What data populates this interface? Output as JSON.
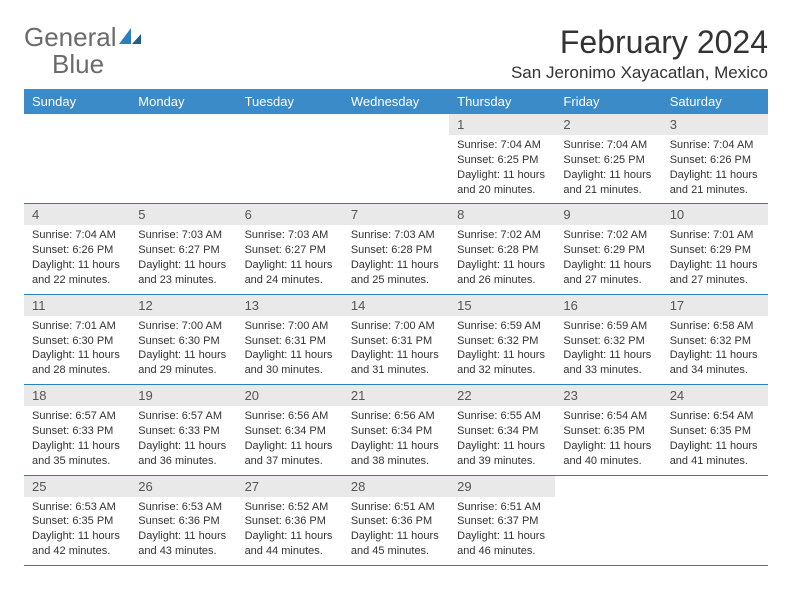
{
  "brand": {
    "name_part1": "General",
    "name_part2": "Blue"
  },
  "title": "February 2024",
  "location": "San Jeronimo Xayacatlan, Mexico",
  "colors": {
    "header_bg": "#3b8bc8",
    "header_text": "#ffffff",
    "daybar_bg": "#e9e9e9",
    "row_border": "#2a7fbf",
    "logo_gray": "#6b6b6b",
    "logo_blue": "#2a7fbf",
    "text": "#333333"
  },
  "day_headers": [
    "Sunday",
    "Monday",
    "Tuesday",
    "Wednesday",
    "Thursday",
    "Friday",
    "Saturday"
  ],
  "weeks": [
    [
      null,
      null,
      null,
      null,
      {
        "n": 1,
        "sunrise": "7:04 AM",
        "sunset": "6:25 PM",
        "daylight": "11 hours and 20 minutes."
      },
      {
        "n": 2,
        "sunrise": "7:04 AM",
        "sunset": "6:25 PM",
        "daylight": "11 hours and 21 minutes."
      },
      {
        "n": 3,
        "sunrise": "7:04 AM",
        "sunset": "6:26 PM",
        "daylight": "11 hours and 21 minutes."
      }
    ],
    [
      {
        "n": 4,
        "sunrise": "7:04 AM",
        "sunset": "6:26 PM",
        "daylight": "11 hours and 22 minutes."
      },
      {
        "n": 5,
        "sunrise": "7:03 AM",
        "sunset": "6:27 PM",
        "daylight": "11 hours and 23 minutes."
      },
      {
        "n": 6,
        "sunrise": "7:03 AM",
        "sunset": "6:27 PM",
        "daylight": "11 hours and 24 minutes."
      },
      {
        "n": 7,
        "sunrise": "7:03 AM",
        "sunset": "6:28 PM",
        "daylight": "11 hours and 25 minutes."
      },
      {
        "n": 8,
        "sunrise": "7:02 AM",
        "sunset": "6:28 PM",
        "daylight": "11 hours and 26 minutes."
      },
      {
        "n": 9,
        "sunrise": "7:02 AM",
        "sunset": "6:29 PM",
        "daylight": "11 hours and 27 minutes."
      },
      {
        "n": 10,
        "sunrise": "7:01 AM",
        "sunset": "6:29 PM",
        "daylight": "11 hours and 27 minutes."
      }
    ],
    [
      {
        "n": 11,
        "sunrise": "7:01 AM",
        "sunset": "6:30 PM",
        "daylight": "11 hours and 28 minutes."
      },
      {
        "n": 12,
        "sunrise": "7:00 AM",
        "sunset": "6:30 PM",
        "daylight": "11 hours and 29 minutes."
      },
      {
        "n": 13,
        "sunrise": "7:00 AM",
        "sunset": "6:31 PM",
        "daylight": "11 hours and 30 minutes."
      },
      {
        "n": 14,
        "sunrise": "7:00 AM",
        "sunset": "6:31 PM",
        "daylight": "11 hours and 31 minutes."
      },
      {
        "n": 15,
        "sunrise": "6:59 AM",
        "sunset": "6:32 PM",
        "daylight": "11 hours and 32 minutes."
      },
      {
        "n": 16,
        "sunrise": "6:59 AM",
        "sunset": "6:32 PM",
        "daylight": "11 hours and 33 minutes."
      },
      {
        "n": 17,
        "sunrise": "6:58 AM",
        "sunset": "6:32 PM",
        "daylight": "11 hours and 34 minutes."
      }
    ],
    [
      {
        "n": 18,
        "sunrise": "6:57 AM",
        "sunset": "6:33 PM",
        "daylight": "11 hours and 35 minutes."
      },
      {
        "n": 19,
        "sunrise": "6:57 AM",
        "sunset": "6:33 PM",
        "daylight": "11 hours and 36 minutes."
      },
      {
        "n": 20,
        "sunrise": "6:56 AM",
        "sunset": "6:34 PM",
        "daylight": "11 hours and 37 minutes."
      },
      {
        "n": 21,
        "sunrise": "6:56 AM",
        "sunset": "6:34 PM",
        "daylight": "11 hours and 38 minutes."
      },
      {
        "n": 22,
        "sunrise": "6:55 AM",
        "sunset": "6:34 PM",
        "daylight": "11 hours and 39 minutes."
      },
      {
        "n": 23,
        "sunrise": "6:54 AM",
        "sunset": "6:35 PM",
        "daylight": "11 hours and 40 minutes."
      },
      {
        "n": 24,
        "sunrise": "6:54 AM",
        "sunset": "6:35 PM",
        "daylight": "11 hours and 41 minutes."
      }
    ],
    [
      {
        "n": 25,
        "sunrise": "6:53 AM",
        "sunset": "6:35 PM",
        "daylight": "11 hours and 42 minutes."
      },
      {
        "n": 26,
        "sunrise": "6:53 AM",
        "sunset": "6:36 PM",
        "daylight": "11 hours and 43 minutes."
      },
      {
        "n": 27,
        "sunrise": "6:52 AM",
        "sunset": "6:36 PM",
        "daylight": "11 hours and 44 minutes."
      },
      {
        "n": 28,
        "sunrise": "6:51 AM",
        "sunset": "6:36 PM",
        "daylight": "11 hours and 45 minutes."
      },
      {
        "n": 29,
        "sunrise": "6:51 AM",
        "sunset": "6:37 PM",
        "daylight": "11 hours and 46 minutes."
      },
      null,
      null
    ]
  ],
  "labels": {
    "sunrise": "Sunrise: ",
    "sunset": "Sunset: ",
    "daylight": "Daylight: "
  }
}
